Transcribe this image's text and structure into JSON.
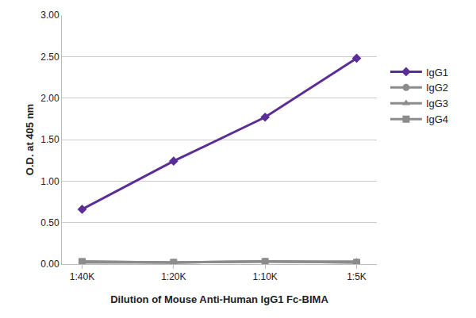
{
  "chart_data": {
    "type": "line",
    "x_label": "Dilution of Mouse Anti-Human IgG1 Fc-BIMA",
    "y_label": "O.D. at 405 nm",
    "categories": [
      "1:40K",
      "1:20K",
      "1:10K",
      "1:5K"
    ],
    "series": [
      {
        "name": "IgG1",
        "color": "#5b2d96",
        "marker": "diamond",
        "line_style": "solid",
        "values": [
          0.66,
          1.24,
          1.77,
          2.48
        ]
      },
      {
        "name": "IgG2",
        "color": "#8c8c8c",
        "marker": "circle",
        "line_style": "solid",
        "values": [
          0.02,
          0.02,
          0.03,
          0.02
        ]
      },
      {
        "name": "IgG3",
        "color": "#8c8c8c",
        "marker": "triangle",
        "line_style": "solid",
        "values": [
          0.03,
          0.02,
          0.03,
          0.03
        ]
      },
      {
        "name": "IgG4",
        "color": "#8c8c8c",
        "marker": "square",
        "line_style": "solid",
        "values": [
          0.03,
          0.02,
          0.03,
          0.02
        ]
      }
    ],
    "ylim": [
      0,
      3
    ],
    "yticks": [
      {
        "value": 0,
        "label": "0.00"
      },
      {
        "value": 0.5,
        "label": "0.50"
      },
      {
        "value": 1,
        "label": "1.00"
      },
      {
        "value": 1.5,
        "label": "1.50"
      },
      {
        "value": 2,
        "label": "2.00"
      },
      {
        "value": 2.5,
        "label": "2.50"
      },
      {
        "value": 3,
        "label": "3.00"
      }
    ],
    "grid": true,
    "legend": "right"
  }
}
